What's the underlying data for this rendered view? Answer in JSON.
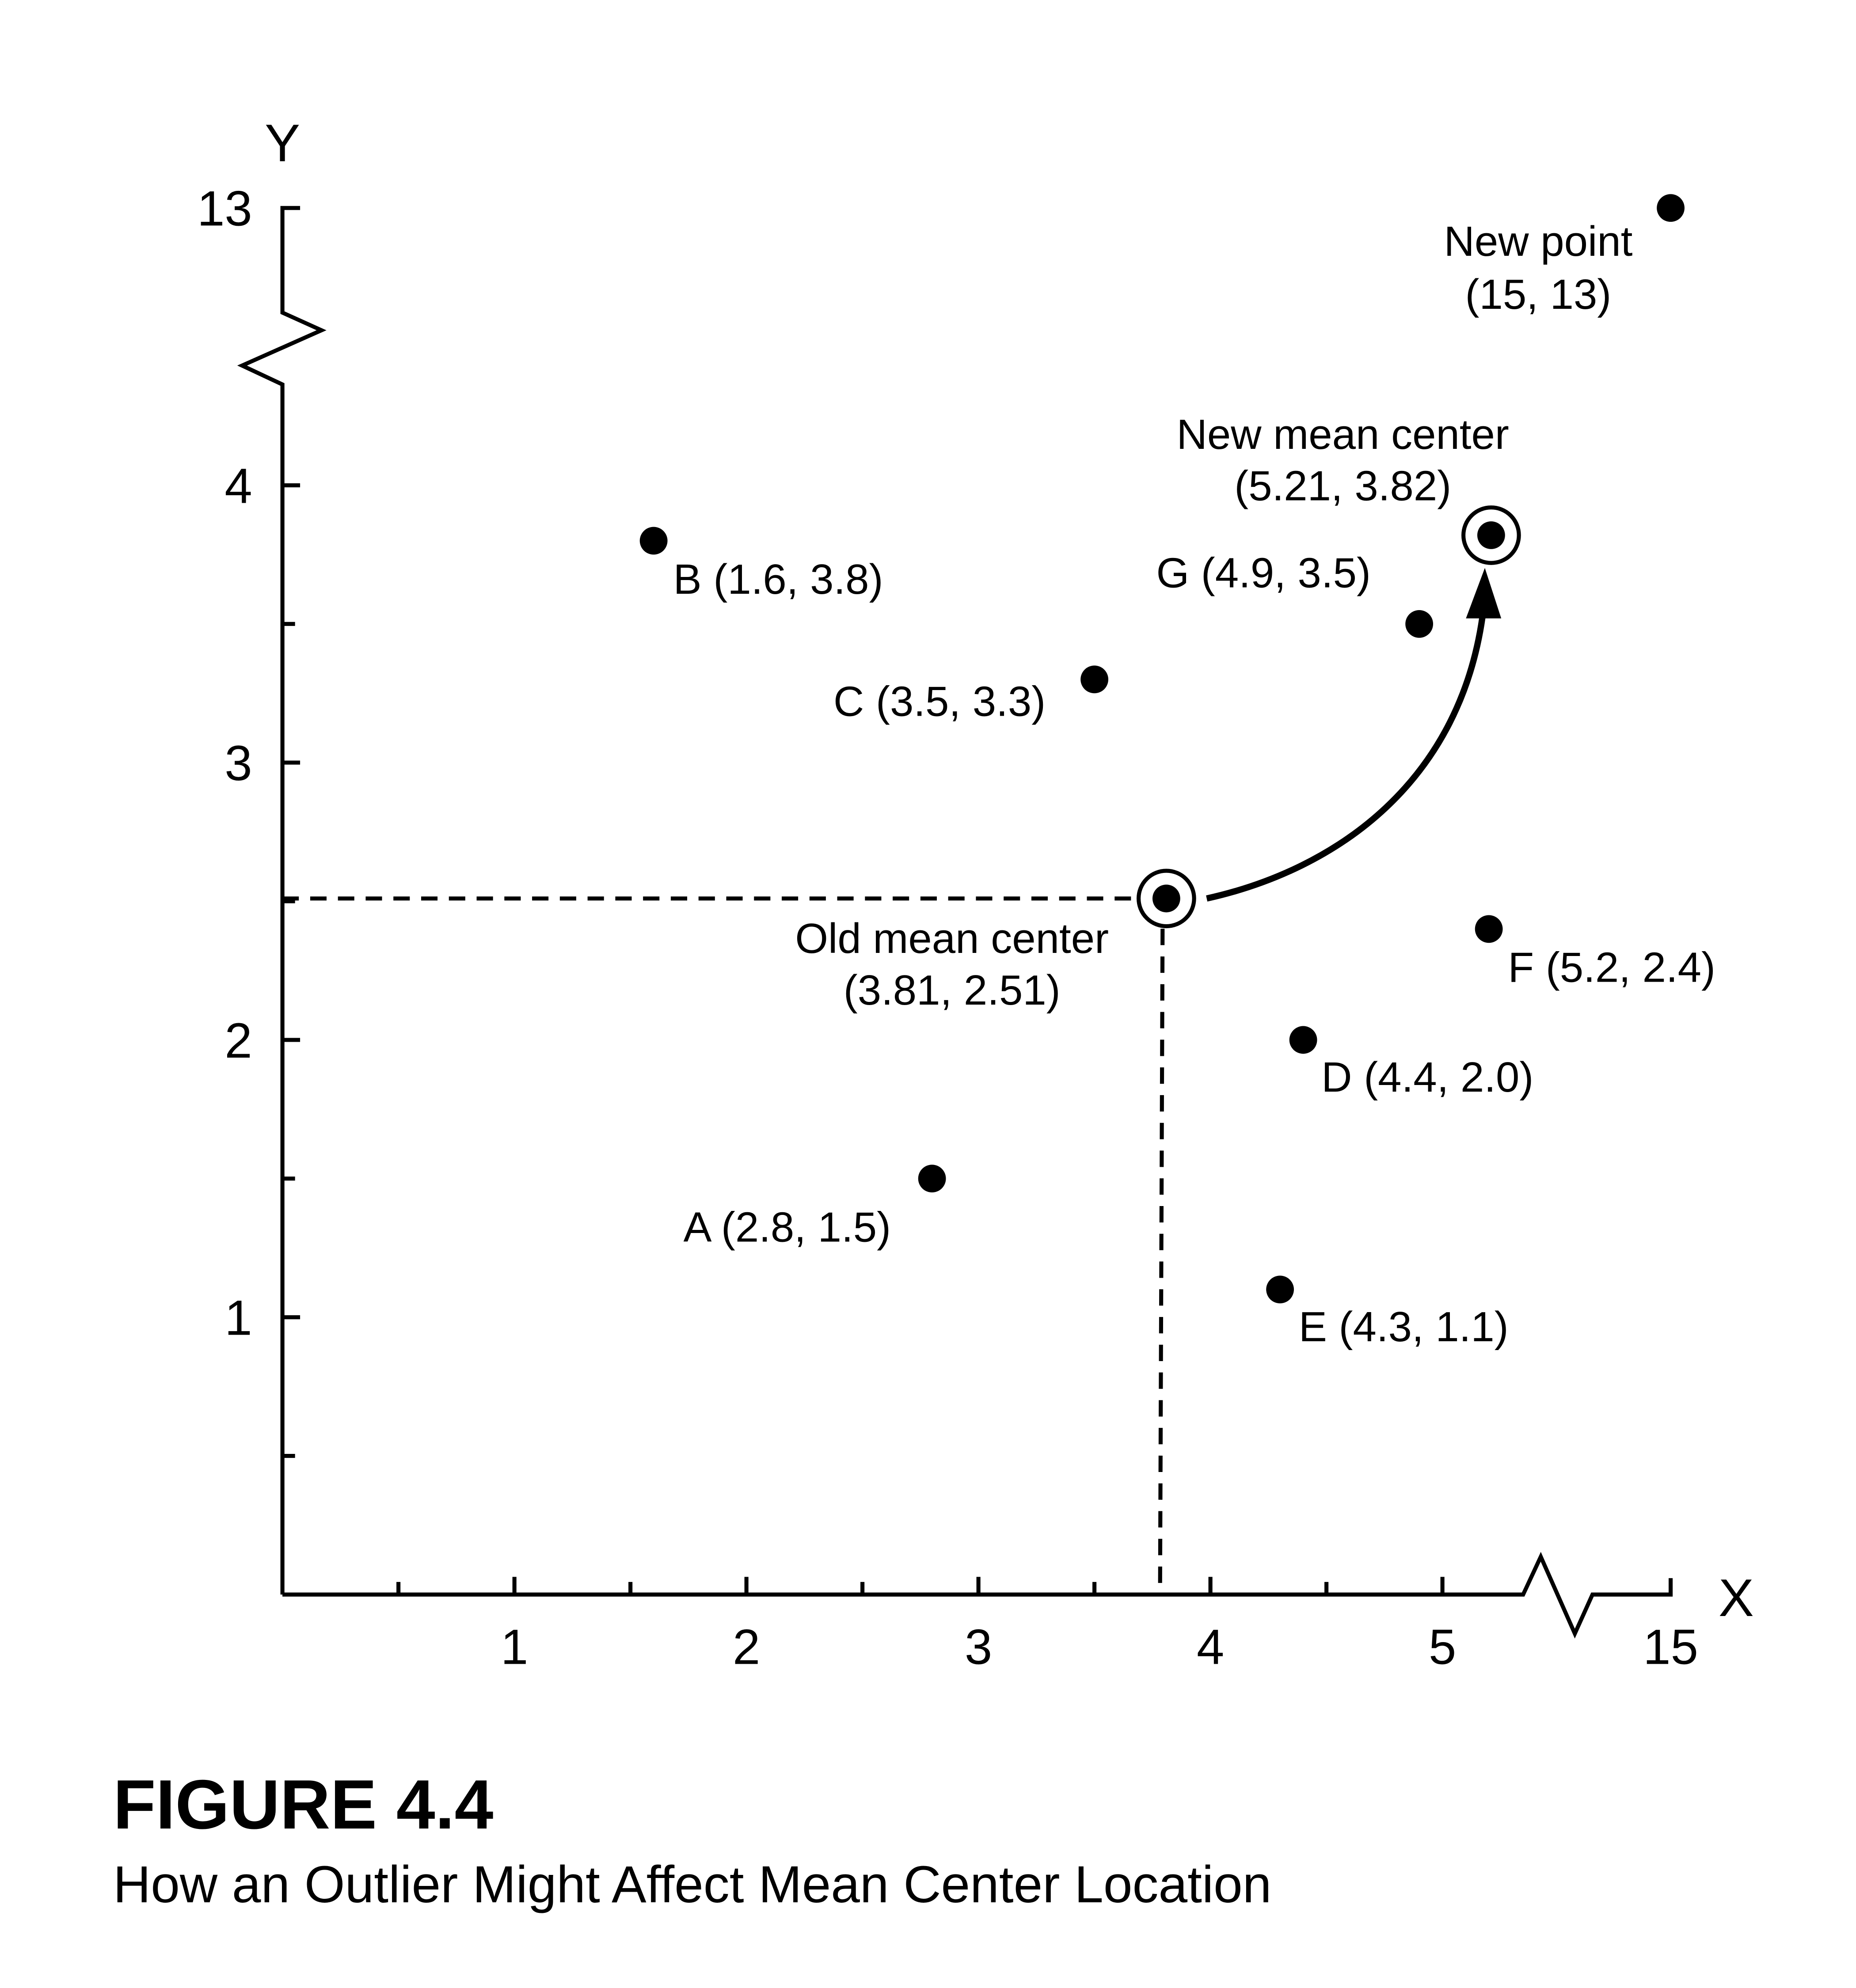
{
  "figure": {
    "label": "FIGURE 4.4",
    "caption": "How an Outlier Might Affect Mean Center Location"
  },
  "chart_data": {
    "type": "scatter",
    "title": "",
    "xlabel": "X",
    "ylabel": "Y",
    "x_ticks": [
      "1",
      "2",
      "3",
      "4",
      "5",
      "15"
    ],
    "y_ticks": [
      "1",
      "2",
      "3",
      "4",
      "13"
    ],
    "x_axis_break": "between 5 and 15",
    "y_axis_break": "between 4 and 13",
    "grid": false,
    "points": [
      {
        "name": "A",
        "x": 2.8,
        "y": 1.5,
        "label": "A (2.8, 1.5)"
      },
      {
        "name": "B",
        "x": 1.6,
        "y": 3.8,
        "label": "B (1.6, 3.8)"
      },
      {
        "name": "C",
        "x": 3.5,
        "y": 3.3,
        "label": "C (3.5, 3.3)"
      },
      {
        "name": "D",
        "x": 4.4,
        "y": 2.0,
        "label": "D (4.4, 2.0)"
      },
      {
        "name": "E",
        "x": 4.3,
        "y": 1.1,
        "label": "E (4.3, 1.1)"
      },
      {
        "name": "F",
        "x": 5.2,
        "y": 2.4,
        "label": "F (5.2, 2.4)"
      },
      {
        "name": "G",
        "x": 4.9,
        "y": 3.5,
        "label": "G (4.9, 3.5)"
      },
      {
        "name": "New point",
        "x": 15,
        "y": 13,
        "label_lines": [
          "New point",
          "(15, 13)"
        ]
      }
    ],
    "old_mean_center": {
      "x": 3.81,
      "y": 2.51,
      "label_lines": [
        "Old mean center",
        "(3.81, 2.51)"
      ]
    },
    "new_mean_center": {
      "x": 5.21,
      "y": 3.82,
      "label_lines": [
        "New mean center",
        "(5.21, 3.82)"
      ]
    }
  }
}
